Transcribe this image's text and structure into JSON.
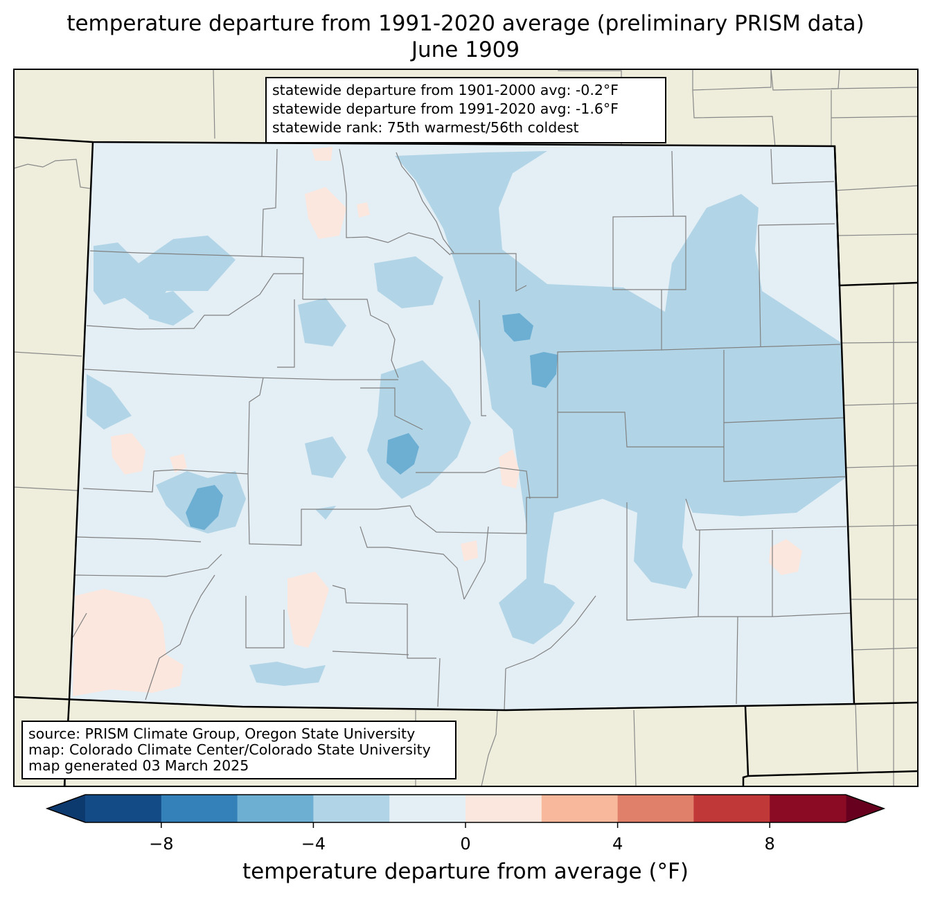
{
  "title": {
    "line1": "temperature departure from 1991-2020 average (preliminary PRISM data)",
    "line2": "June 1909"
  },
  "stats": {
    "line1": "statewide departure from 1901-2000 avg: -0.2°F",
    "line2": "statewide departure from 1991-2020 avg: -1.6°F",
    "line3": "statewide rank: 75th warmest/56th coldest"
  },
  "source": {
    "line1": "source: PRISM Climate Group, Oregon State University",
    "line2": "map: Colorado Climate Center/Colorado State University",
    "line3": "map generated 03 March 2025"
  },
  "colorbar": {
    "label": "temperature departure from average (°F)",
    "ticks": [
      "−8",
      "−4",
      "0",
      "4",
      "8"
    ],
    "tick_values": [
      -8,
      -4,
      0,
      4,
      8
    ],
    "range": [
      -10,
      10
    ],
    "step": 2,
    "extend": "both",
    "colors": [
      "#0c3a6e",
      "#134b87",
      "#3481ba",
      "#6daed3",
      "#b1d5e7",
      "#e4eef5",
      "#fbe7dd",
      "#f7b89c",
      "#e0806a",
      "#c03838",
      "#8b0b24",
      "#67001f"
    ]
  },
  "map_colors": {
    "land": "#efeedd",
    "bin_0_to_-2": "#e4eef5",
    "bin_-2_to_-4": "#b1d5e7",
    "bin_-4_to_-6": "#6daed3",
    "bin_0_to_2": "#fbe7dd"
  }
}
